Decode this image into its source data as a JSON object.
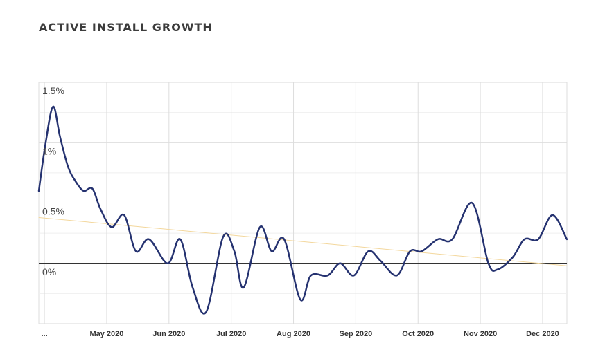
{
  "title": "ACTIVE INSTALL GROWTH",
  "chart_data": {
    "type": "line",
    "title": "ACTIVE INSTALL GROWTH",
    "xlabel": "",
    "ylabel": "",
    "ylim": [
      -0.5,
      1.5
    ],
    "grid": true,
    "y_ticks": [
      {
        "value": 1.5,
        "label": "1.5%"
      },
      {
        "value": 1.0,
        "label": "1%"
      },
      {
        "value": 0.5,
        "label": "0.5%"
      },
      {
        "value": 0.0,
        "label": "0%"
      }
    ],
    "x_ticks": [
      {
        "value": 0,
        "label": "..."
      },
      {
        "value": 10,
        "label": "May 2020"
      },
      {
        "value": 20,
        "label": "Jun 2020"
      },
      {
        "value": 30,
        "label": "Jul 2020"
      },
      {
        "value": 40,
        "label": "Aug 2020"
      },
      {
        "value": 50,
        "label": "Sep 2020"
      },
      {
        "value": 60,
        "label": "Oct 2020"
      },
      {
        "value": 70,
        "label": "Nov 2020"
      },
      {
        "value": 80,
        "label": "Dec 2020"
      }
    ],
    "x_range": [
      -0.9,
      83.9
    ],
    "series": [
      {
        "color": "#253270",
        "values": [
          [
            -0.9,
            0.6
          ],
          [
            0.2,
            1.0
          ],
          [
            1.4,
            1.3
          ],
          [
            2.5,
            1.05
          ],
          [
            3.8,
            0.8
          ],
          [
            5.0,
            0.68
          ],
          [
            6.3,
            0.6
          ],
          [
            7.7,
            0.62
          ],
          [
            9.0,
            0.45
          ],
          [
            10.8,
            0.3
          ],
          [
            12.8,
            0.4
          ],
          [
            14.7,
            0.1
          ],
          [
            16.8,
            0.2
          ],
          [
            19.8,
            0.0
          ],
          [
            21.8,
            0.2
          ],
          [
            23.8,
            -0.2
          ],
          [
            26.0,
            -0.4
          ],
          [
            28.7,
            0.22
          ],
          [
            30.5,
            0.1
          ],
          [
            32.0,
            -0.2
          ],
          [
            34.6,
            0.3
          ],
          [
            36.5,
            0.1
          ],
          [
            38.5,
            0.2
          ],
          [
            41.1,
            -0.3
          ],
          [
            42.8,
            -0.1
          ],
          [
            45.5,
            -0.1
          ],
          [
            47.5,
            0.0
          ],
          [
            49.7,
            -0.1
          ],
          [
            52.0,
            0.1
          ],
          [
            54.0,
            0.02
          ],
          [
            56.6,
            -0.1
          ],
          [
            58.7,
            0.1
          ],
          [
            60.6,
            0.1
          ],
          [
            63.2,
            0.2
          ],
          [
            65.5,
            0.2
          ],
          [
            68.7,
            0.5
          ],
          [
            71.3,
            0.0
          ],
          [
            72.8,
            -0.05
          ],
          [
            75.2,
            0.05
          ],
          [
            77.1,
            0.2
          ],
          [
            79.3,
            0.2
          ],
          [
            81.6,
            0.4
          ],
          [
            83.9,
            0.2
          ]
        ]
      },
      {
        "color": "#f3d79c",
        "values": [
          [
            -0.9,
            0.38
          ],
          [
            83.9,
            -0.02
          ]
        ]
      }
    ],
    "zero_line": 0
  }
}
